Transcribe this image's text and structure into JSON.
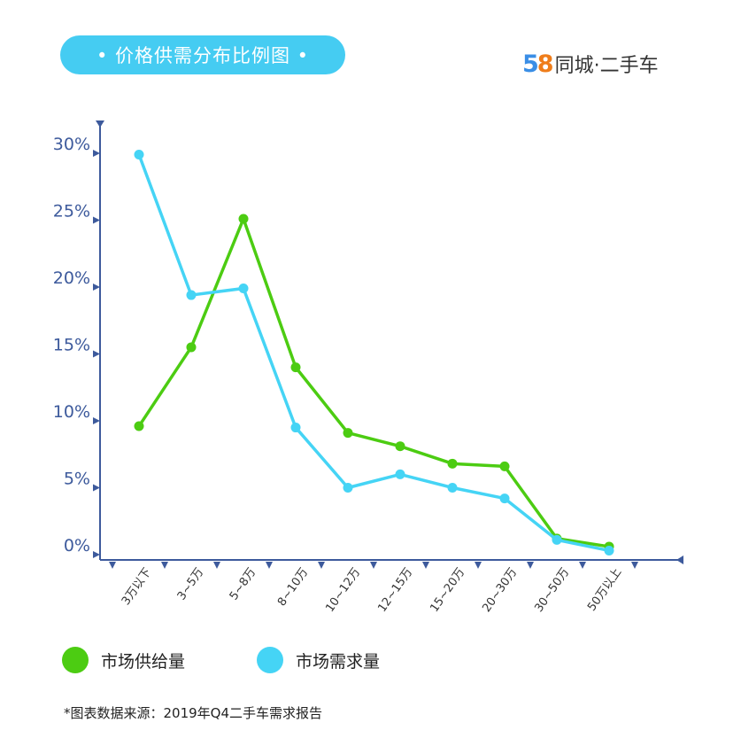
{
  "header": {
    "title": "• 价格供需分布比例图 •",
    "logo_5": "5",
    "logo_8": "8",
    "logo_text": "同城·二手车"
  },
  "colors": {
    "supply": "#4ccc12",
    "demand": "#45d4f5",
    "axis": "#3d5a9c",
    "pill": "#45ccf2"
  },
  "chart_data": {
    "type": "line",
    "categories": [
      "3万以下",
      "3~5万",
      "5~8万",
      "8~10万",
      "10~12万",
      "12~15万",
      "15~20万",
      "20~30万",
      "30~50万",
      "50万以上"
    ],
    "y_ticks": [
      "0%",
      "5%",
      "10%",
      "15%",
      "20%",
      "25%",
      "30%"
    ],
    "ylim": [
      0,
      30
    ],
    "grid": false,
    "series": [
      {
        "name": "市场供给量",
        "color": "#4ccc12",
        "values": [
          9.6,
          15.5,
          25.1,
          14.0,
          9.1,
          8.1,
          6.8,
          6.6,
          1.2,
          0.6
        ]
      },
      {
        "name": "市场需求量",
        "color": "#45d4f5",
        "values": [
          29.9,
          19.4,
          19.9,
          9.5,
          5.0,
          6.0,
          5.0,
          4.2,
          1.1,
          0.3
        ]
      }
    ]
  },
  "legend": {
    "supply_label": "市场供给量",
    "demand_label": "市场需求量"
  },
  "footnote": "*图表数据来源：2019年Q4二手车需求报告"
}
